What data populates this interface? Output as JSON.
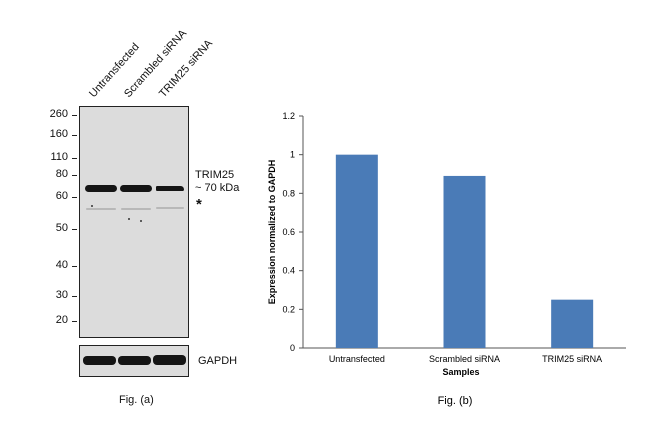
{
  "western_blot": {
    "lanes": [
      "Untransfected",
      "Scrambled siRNA",
      "TRIM25 siRNA"
    ],
    "mw_markers": [
      "260",
      "160",
      "110",
      "80",
      "60",
      "50",
      "40",
      "30",
      "20"
    ],
    "target_label": "TRIM25",
    "target_size": "~ 70 kDa",
    "nonspecific_marker": "*",
    "loading_control": "GAPDH",
    "caption": "Fig. (a)"
  },
  "chart_data": {
    "type": "bar",
    "categories": [
      "Untransfected",
      "Scrambled siRNA",
      "TRIM25 siRNA"
    ],
    "values": [
      1.0,
      0.89,
      0.25
    ],
    "xlabel": "Samples",
    "ylabel": "Expression normalized to GAPDH",
    "ylim": [
      0,
      1.2
    ],
    "yticks": [
      "0",
      "0.2",
      "0.4",
      "0.6",
      "0.8",
      "1",
      "1.2"
    ],
    "grid": false,
    "bar_color": "#4a7bb7",
    "caption": "Fig. (b)"
  }
}
